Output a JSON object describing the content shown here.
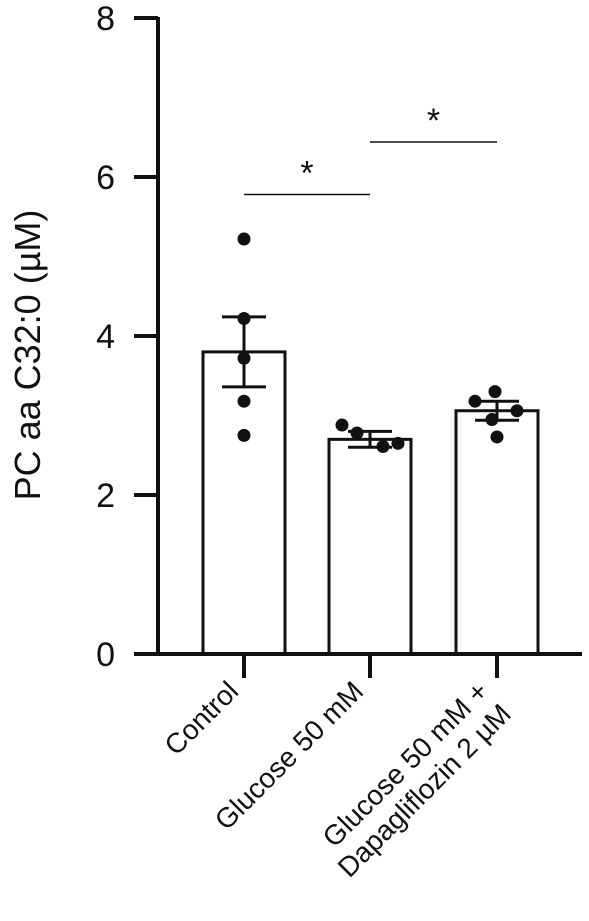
{
  "chart_data": {
    "type": "bar",
    "title": "",
    "xlabel": "",
    "ylabel": "PC aa C32:0 (µM)",
    "ylim": [
      0,
      8
    ],
    "yticks": [
      "0",
      "2",
      "4",
      "6",
      "8"
    ],
    "grid": false,
    "legend": "none",
    "categories": [
      [
        "Control"
      ],
      [
        "Glucose 50 mM"
      ],
      [
        "Glucose 50 mM +",
        "Dapagliflozin 2 µM"
      ]
    ],
    "values": [
      3.8,
      2.7,
      3.06
    ],
    "error_sem": [
      0.44,
      0.1,
      0.12
    ],
    "points": [
      [
        5.22,
        4.22,
        3.72,
        3.18,
        2.75
      ],
      [
        2.88,
        2.78,
        2.65,
        2.61
      ],
      [
        3.3,
        3.18,
        3.06,
        2.95,
        2.73
      ]
    ],
    "significance": [
      {
        "from": 0,
        "to": 1,
        "label": "*",
        "y": 5.78
      },
      {
        "from": 1,
        "to": 2,
        "label": "*",
        "y": 6.44
      }
    ],
    "colors": {
      "bar_fill": "#ffffff",
      "bar_stroke": "#111111",
      "points": "#111111",
      "axis": "#111111"
    }
  }
}
